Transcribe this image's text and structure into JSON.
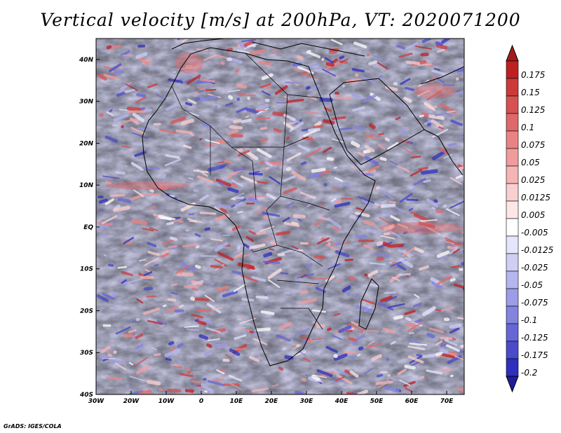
{
  "title": "Vertical velocity [m/s] at 200hPa, VT: 2020071200",
  "credit": "GrADS: IGES/COLA",
  "map": {
    "projection": "lat-lon",
    "lon_range": [
      -30,
      75
    ],
    "lat_range": [
      -40,
      45
    ],
    "lon_ticks": [
      {
        "value": -30,
        "label": "30W"
      },
      {
        "value": -20,
        "label": "20W"
      },
      {
        "value": -10,
        "label": "10W"
      },
      {
        "value": 0,
        "label": "0"
      },
      {
        "value": 10,
        "label": "10E"
      },
      {
        "value": 20,
        "label": "20E"
      },
      {
        "value": 30,
        "label": "30E"
      },
      {
        "value": 40,
        "label": "40E"
      },
      {
        "value": 50,
        "label": "50E"
      },
      {
        "value": 60,
        "label": "60E"
      },
      {
        "value": 70,
        "label": "70E"
      }
    ],
    "lat_ticks": [
      {
        "value": 40,
        "label": "40N"
      },
      {
        "value": 30,
        "label": "30N"
      },
      {
        "value": 20,
        "label": "20N"
      },
      {
        "value": 10,
        "label": "10N"
      },
      {
        "value": 0,
        "label": "EQ"
      },
      {
        "value": -10,
        "label": "10S"
      },
      {
        "value": -20,
        "label": "20S"
      },
      {
        "value": -30,
        "label": "30S"
      },
      {
        "value": -40,
        "label": "40S"
      }
    ],
    "variable": "vertical velocity",
    "units": "m/s",
    "level": "200hPa"
  },
  "colorbar": {
    "levels": [
      {
        "label": "0.175",
        "color": "#bf1e23"
      },
      {
        "label": "0.15",
        "color": "#cc3a3a"
      },
      {
        "label": "0.125",
        "color": "#d75151"
      },
      {
        "label": "0.1",
        "color": "#e06868"
      },
      {
        "label": "0.075",
        "color": "#e98383"
      },
      {
        "label": "0.05",
        "color": "#f09c9c"
      },
      {
        "label": "0.025",
        "color": "#f5b5b5"
      },
      {
        "label": "0.0125",
        "color": "#f9cfcf"
      },
      {
        "label": "0.005",
        "color": "#fce6e6"
      },
      {
        "label": "-0.005",
        "color": "#ffffff"
      },
      {
        "label": "-0.0125",
        "color": "#e6e6fa"
      },
      {
        "label": "-0.025",
        "color": "#cfcff5"
      },
      {
        "label": "-0.05",
        "color": "#b5b5ef"
      },
      {
        "label": "-0.075",
        "color": "#9c9ce8"
      },
      {
        "label": "-0.1",
        "color": "#8383e0"
      },
      {
        "label": "-0.125",
        "color": "#6666d6"
      },
      {
        "label": "-0.175",
        "color": "#4a4acb"
      },
      {
        "label": "-0.2",
        "color": "#2f2fbd"
      }
    ],
    "top_cap_color": "#a31c1c",
    "bottom_cap_color": "#1e1e9c",
    "mid_color": "#ffffff"
  }
}
